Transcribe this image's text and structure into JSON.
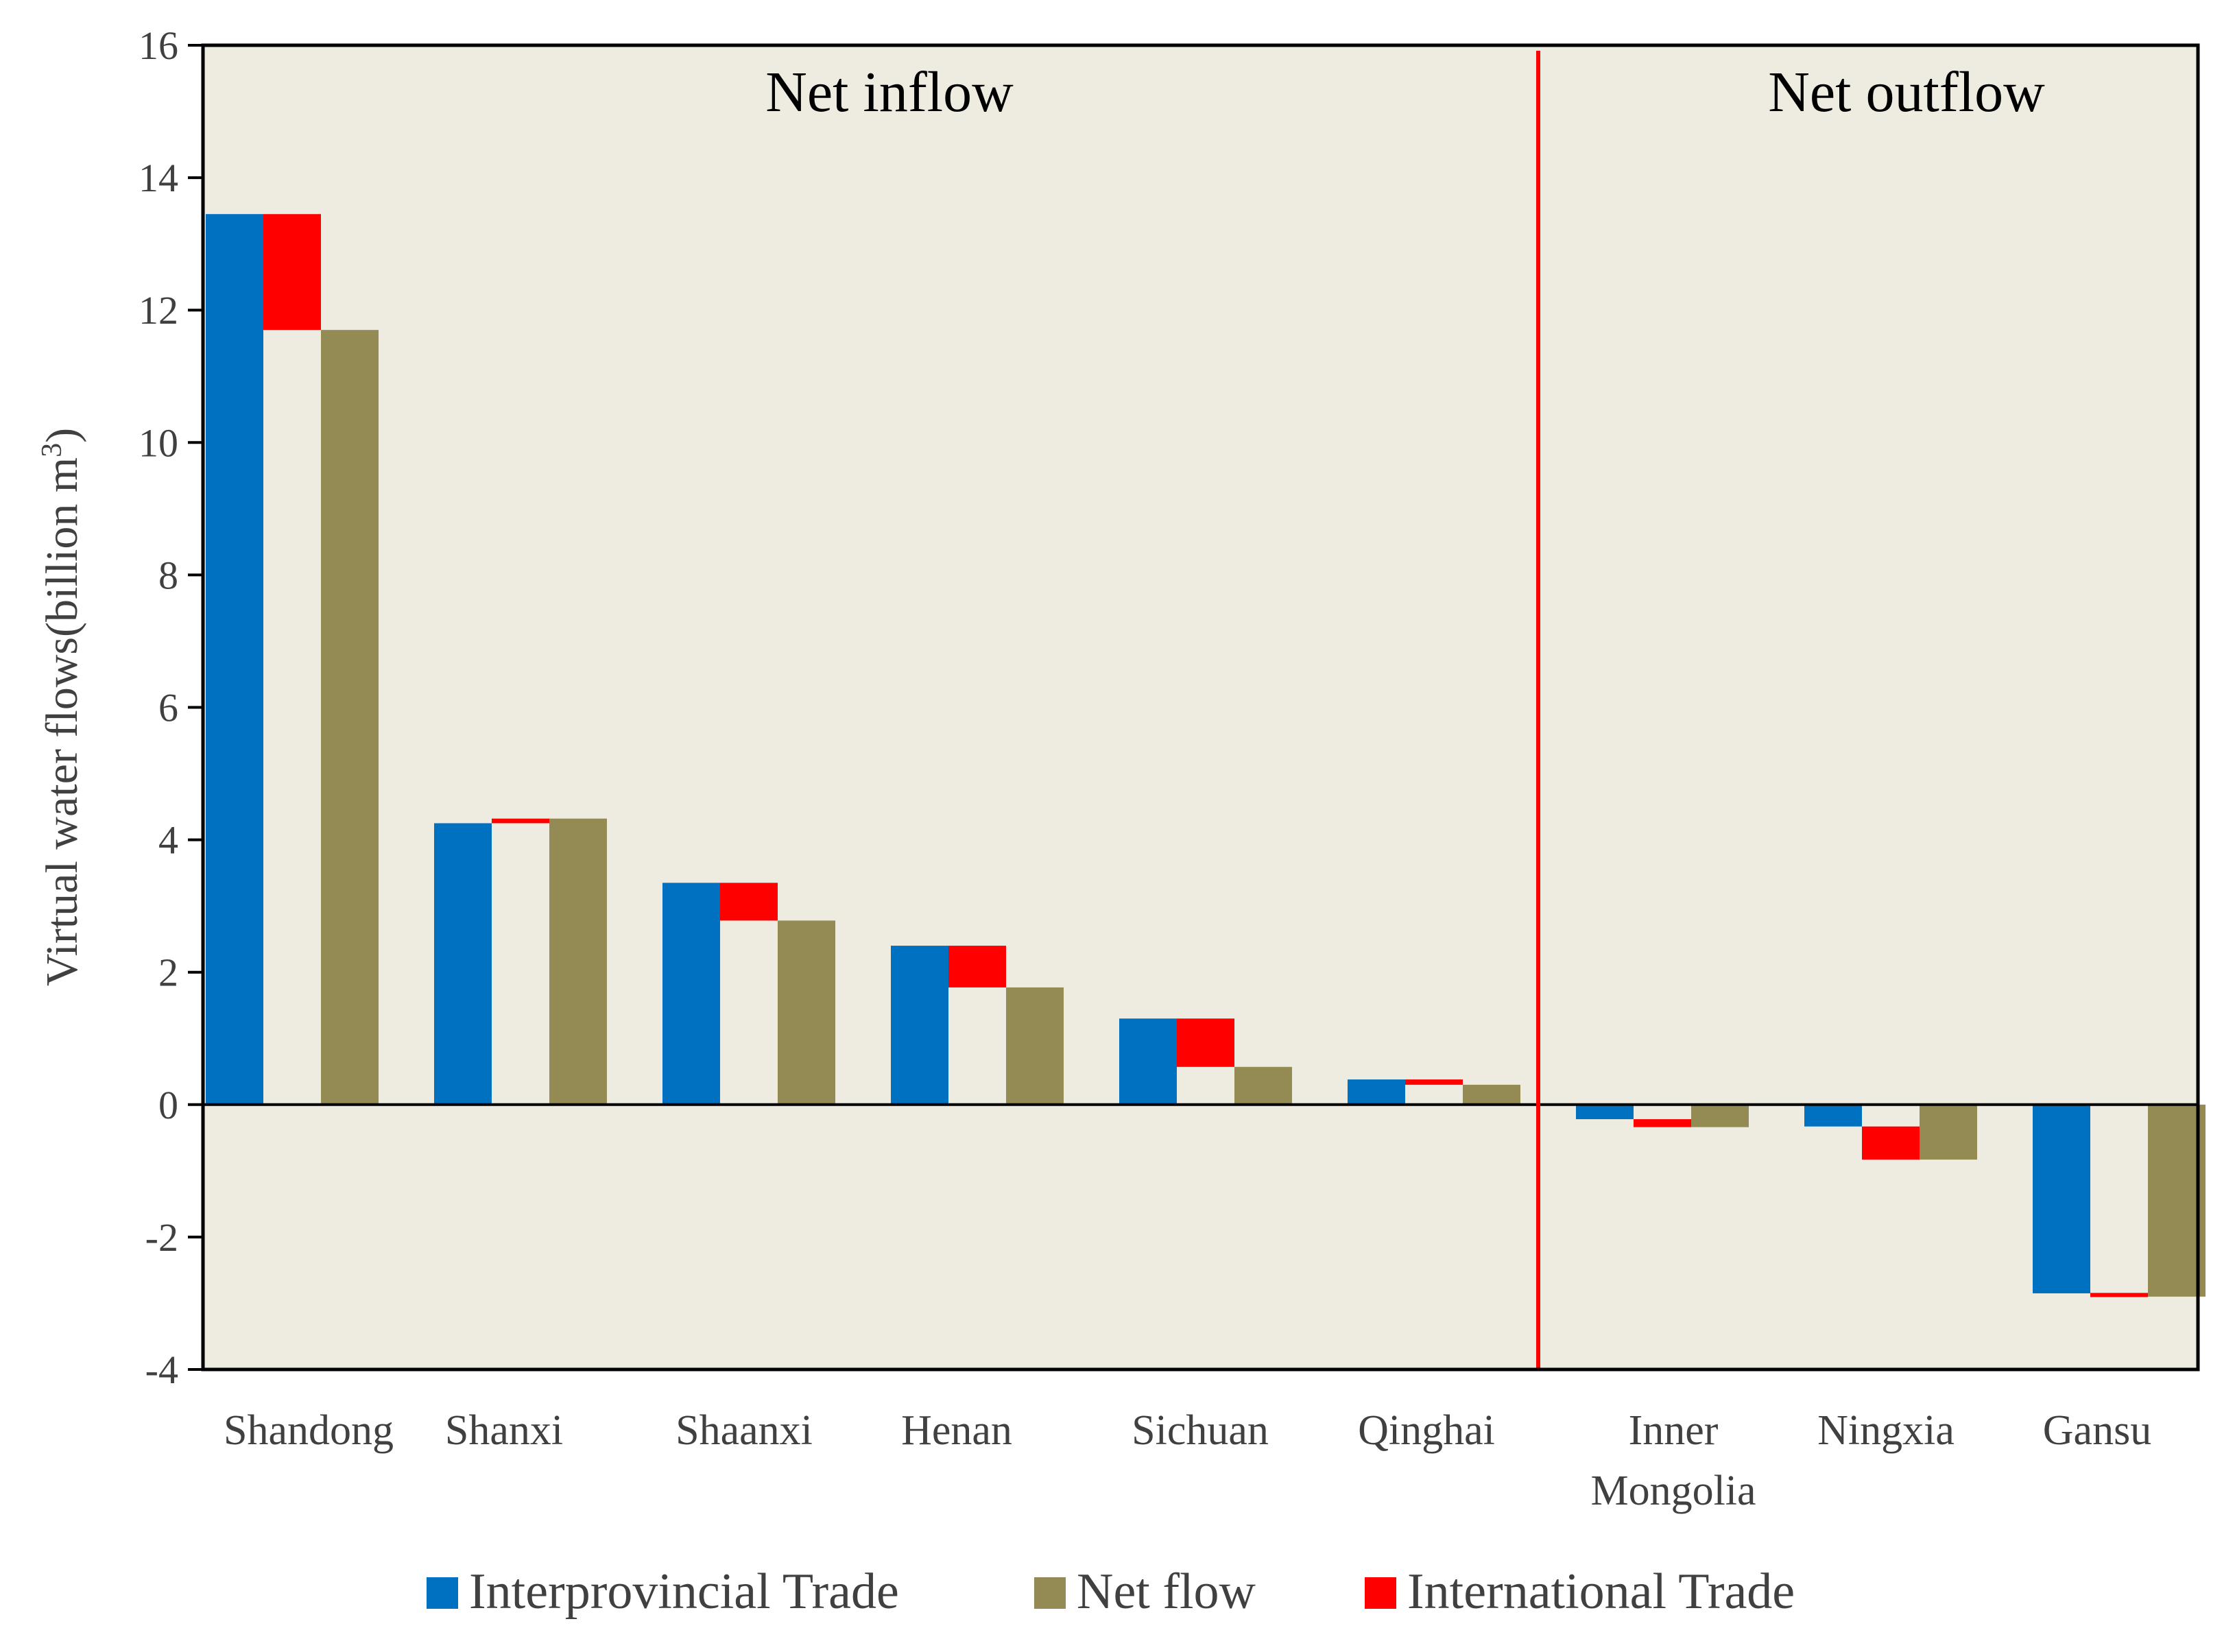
{
  "chart_data": {
    "type": "bar",
    "subtype": "waterfall",
    "ylabel": "Virtual water flows(billion m3)",
    "ylabel_parts": [
      "Virtual water flows(billion m",
      "3",
      ")"
    ],
    "ylim": [
      -4,
      16
    ],
    "yticks": [
      -4,
      -2,
      0,
      2,
      4,
      6,
      8,
      10,
      12,
      14,
      16
    ],
    "ytick_labels": [
      "-4",
      "-2",
      "0",
      "2",
      "4",
      "6",
      "8",
      "10",
      "12",
      "14",
      "16"
    ],
    "grid": false,
    "plot_background": "#EEEBE1",
    "categories": [
      "Shandong",
      "Shanxi",
      "Shaanxi",
      "Henan",
      "Sichuan",
      "Qinghai",
      "Inner Mongolia",
      "Ningxia",
      "Gansu"
    ],
    "category_label_lines": [
      [
        "Shandong"
      ],
      [
        "Shanxi"
      ],
      [
        "Shaanxi"
      ],
      [
        "Henan"
      ],
      [
        "Sichuan"
      ],
      [
        "Qinghai"
      ],
      [
        "Inner",
        "Mongolia"
      ],
      [
        "Ningxia"
      ],
      [
        "Gansu"
      ]
    ],
    "series": [
      {
        "name": "Interprovincial Trade",
        "color": "#0070C0",
        "values": [
          13.45,
          4.25,
          3.35,
          2.4,
          1.3,
          0.38,
          -0.22,
          -0.33,
          -2.85
        ]
      },
      {
        "name": "International Trade",
        "color": "#FF0000",
        "values": [
          -1.75,
          0.07,
          -0.57,
          -0.63,
          -0.73,
          -0.08,
          -0.12,
          -0.5,
          -0.05
        ]
      },
      {
        "name": "Net flow",
        "color": "#948A54",
        "values": [
          11.7,
          4.32,
          2.78,
          1.77,
          0.57,
          0.3,
          -0.34,
          -0.83,
          -2.9
        ]
      }
    ],
    "regions": [
      {
        "label": "Net inflow",
        "from_category": 0,
        "to_category": 5
      },
      {
        "label": "Net outflow",
        "from_category": 6,
        "to_category": 8
      }
    ],
    "divider_color": "#FF0000",
    "legend": {
      "placement": "bottom",
      "entries": [
        {
          "label": "Interprovincial Trade",
          "color": "#0070C0"
        },
        {
          "label": "Net flow",
          "color": "#948A54"
        },
        {
          "label": "International Trade",
          "color": "#FF0000"
        }
      ]
    }
  }
}
